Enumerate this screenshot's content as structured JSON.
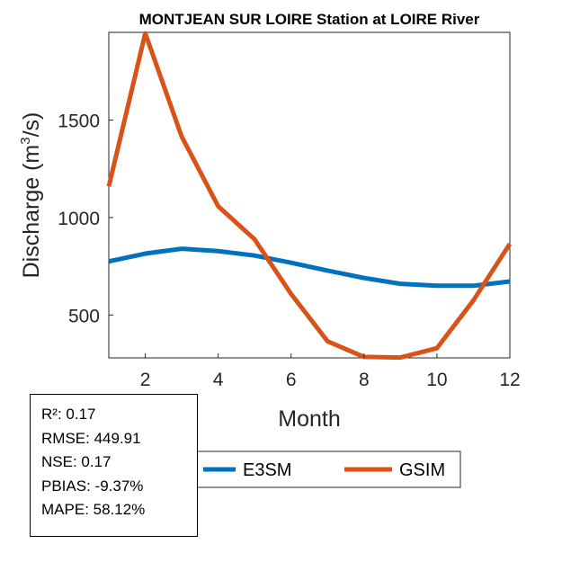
{
  "chart_data": {
    "type": "line",
    "title": "MONTJEAN SUR LOIRE  Station at  LOIRE  River",
    "xlabel": "Month",
    "ylabel": "Discharge (m",
    "ylabel_sup": "3",
    "ylabel_tail": "/s)",
    "xlim": [
      1,
      12
    ],
    "ylim": [
      280,
      1950
    ],
    "xticks": [
      2,
      4,
      6,
      8,
      10,
      12
    ],
    "yticks": [
      500,
      1000,
      1500
    ],
    "x": [
      1,
      2,
      3,
      4,
      5,
      6,
      7,
      8,
      9,
      10,
      11,
      12
    ],
    "series": [
      {
        "name": "E3SM",
        "color": "#0072BD",
        "values": [
          775,
          815,
          840,
          828,
          805,
          768,
          728,
          690,
          660,
          650,
          650,
          672
        ]
      },
      {
        "name": "GSIM",
        "color": "#D95319",
        "values": [
          1160,
          1945,
          1415,
          1058,
          888,
          608,
          365,
          285,
          282,
          330,
          575,
          865
        ]
      }
    ],
    "legend": {
      "placement": "bottom-center",
      "entries": [
        "E3SM",
        "GSIM"
      ]
    },
    "grid": false
  },
  "stats": [
    {
      "label": "R²",
      "value": "0.17"
    },
    {
      "label": "RMSE",
      "value": "449.91"
    },
    {
      "label": "NSE",
      "value": "0.17"
    },
    {
      "label": "PBIAS",
      "value": "-9.37%"
    },
    {
      "label": "MAPE",
      "value": "58.12%"
    }
  ]
}
